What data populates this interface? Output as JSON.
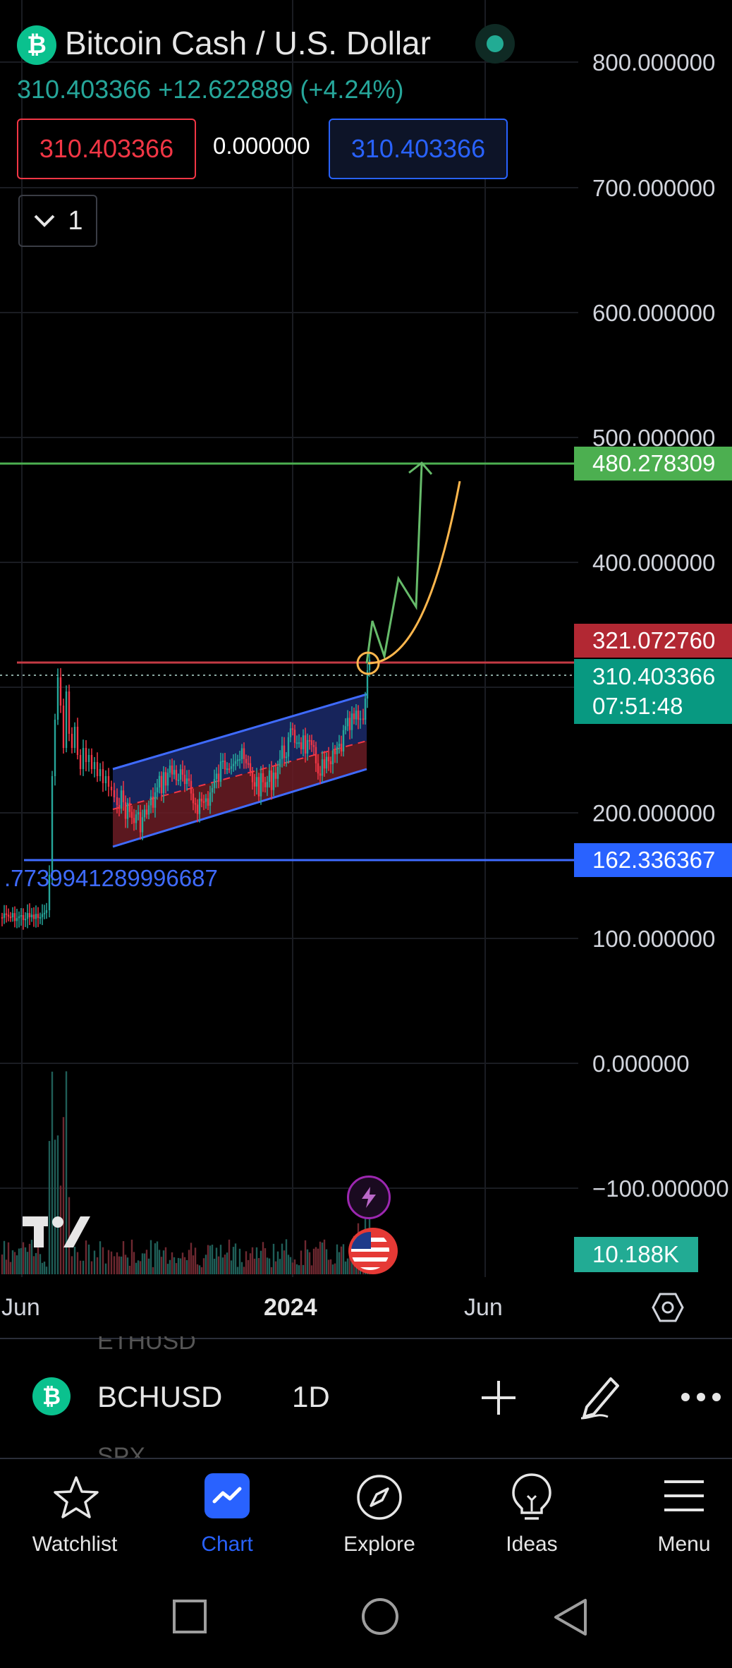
{
  "header": {
    "title": "Bitcoin Cash / U.S. Dollar",
    "price_line": "310.403366  +12.622889 (+4.24%)",
    "sell_price": "310.403366",
    "spread": "0.000000",
    "buy_price": "310.403366",
    "collapse_count": "1"
  },
  "y_axis": {
    "labels": [
      "800.000000",
      "700.000000",
      "600.000000",
      "500.000000",
      "400.000000",
      "200.000000",
      "100.000000",
      "0.000000",
      "−100.000000"
    ]
  },
  "price_tags": {
    "target": "480.278309",
    "resistance": "321.072760",
    "current": "310.403366",
    "countdown": "07:51:48",
    "support": "162.336367",
    "volume": "10.188K"
  },
  "support_line_label": ".773994128999668 7",
  "support_line_text": ".7739941289996687",
  "x_axis": {
    "labels": [
      "Jun",
      "2024",
      "Jun"
    ]
  },
  "toolbar": {
    "symbol": "BCHUSD",
    "interval": "1D",
    "ghost_above": "ETHUSD",
    "ghost_below": "SPX"
  },
  "nav": {
    "watchlist": "Watchlist",
    "chart": "Chart",
    "explore": "Explore",
    "ideas": "Ideas",
    "menu": "Menu"
  },
  "colors": {
    "up": "#26a69a",
    "down": "#f23645",
    "accent": "#2962ff",
    "target_green": "#4caf50",
    "projection_orange": "#ffb74d"
  },
  "icons": [
    "bitcoin-cash-logo",
    "market-status-dot",
    "chevron-down-icon",
    "tradingview-logo",
    "lightning-icon",
    "us-flag-icon",
    "settings-hex-icon",
    "plus-icon",
    "pencil-icon",
    "more-icon",
    "star-icon",
    "chart-icon",
    "compass-icon",
    "bulb-icon",
    "menu-icon"
  ]
}
